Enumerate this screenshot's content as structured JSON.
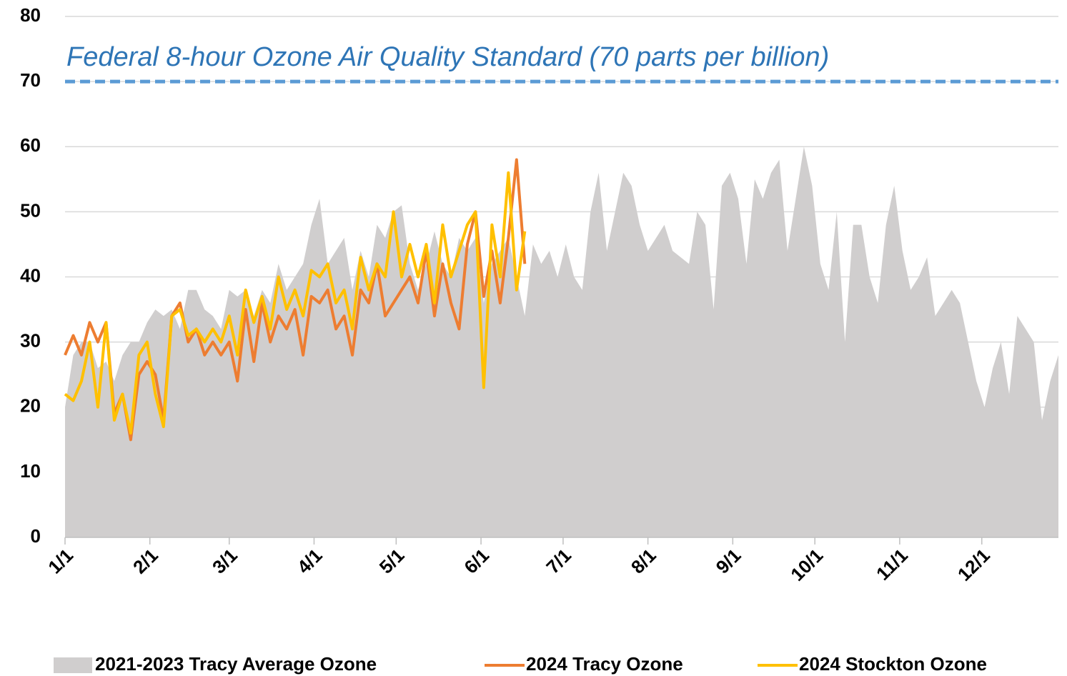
{
  "chart_data": {
    "type": "line",
    "annotation": "Federal 8-hour Ozone Air Quality Standard (70 parts per billion)",
    "reference_line": {
      "value": 70,
      "color": "#5b9bd5"
    },
    "xlim": [
      0,
      363
    ],
    "xticks": [
      {
        "value": 0,
        "label": "1/1"
      },
      {
        "value": 31,
        "label": "2/1"
      },
      {
        "value": 60,
        "label": "3/1"
      },
      {
        "value": 91,
        "label": "4/1"
      },
      {
        "value": 121,
        "label": "5/1"
      },
      {
        "value": 152,
        "label": "6/1"
      },
      {
        "value": 182,
        "label": "7/1"
      },
      {
        "value": 213,
        "label": "8/1"
      },
      {
        "value": 244,
        "label": "9/1"
      },
      {
        "value": 274,
        "label": "10/1"
      },
      {
        "value": 305,
        "label": "11/1"
      },
      {
        "value": 335,
        "label": "12/1"
      }
    ],
    "ylim": [
      0,
      80
    ],
    "yticks": [
      0,
      10,
      20,
      30,
      40,
      50,
      60,
      70,
      80
    ],
    "grid": true,
    "legend": "bottom",
    "series": [
      {
        "name": "2021-2023 Tracy Average Ozone",
        "style": "area",
        "color": "#d0cece",
        "x": [
          0,
          3,
          6,
          9,
          12,
          15,
          18,
          21,
          24,
          27,
          30,
          33,
          36,
          39,
          42,
          45,
          48,
          51,
          54,
          57,
          60,
          63,
          66,
          69,
          72,
          75,
          78,
          81,
          84,
          87,
          90,
          93,
          96,
          99,
          102,
          105,
          108,
          111,
          114,
          117,
          120,
          123,
          126,
          129,
          132,
          135,
          138,
          141,
          144,
          147,
          150,
          153,
          156,
          159,
          162,
          165,
          168,
          171,
          174,
          177,
          180,
          183,
          186,
          189,
          192,
          195,
          198,
          201,
          204,
          207,
          210,
          213,
          216,
          219,
          222,
          225,
          228,
          231,
          234,
          237,
          240,
          243,
          246,
          249,
          252,
          255,
          258,
          261,
          264,
          267,
          270,
          273,
          276,
          279,
          282,
          285,
          288,
          291,
          294,
          297,
          300,
          303,
          306,
          309,
          312,
          315,
          318,
          321,
          324,
          327,
          330,
          333,
          336,
          339,
          342,
          345,
          348,
          351,
          354,
          357,
          360,
          363
        ],
        "values": [
          20,
          28,
          30,
          30,
          26,
          27,
          24,
          28,
          30,
          30,
          33,
          35,
          34,
          35,
          32,
          38,
          38,
          35,
          34,
          32,
          38,
          37,
          38,
          34,
          38,
          36,
          42,
          38,
          40,
          42,
          48,
          52,
          42,
          44,
          46,
          38,
          44,
          40,
          48,
          46,
          50,
          51,
          42,
          38,
          42,
          47,
          42,
          40,
          46,
          44,
          46,
          36,
          42,
          44,
          46,
          40,
          34,
          45,
          42,
          44,
          40,
          45,
          40,
          38,
          50,
          56,
          44,
          50,
          56,
          54,
          48,
          44,
          46,
          48,
          44,
          43,
          42,
          50,
          48,
          35,
          54,
          56,
          52,
          42,
          55,
          52,
          56,
          58,
          44,
          52,
          60,
          54,
          42,
          38,
          50,
          30,
          48,
          48,
          40,
          36,
          48,
          54,
          44,
          38,
          40,
          43,
          34,
          36,
          38,
          36,
          30,
          24,
          20,
          26,
          30,
          22,
          34,
          32,
          30,
          18,
          24,
          28
        ]
      },
      {
        "name": "2024 Tracy Ozone",
        "style": "line",
        "color": "#ed7d31",
        "x": [
          0,
          3,
          6,
          9,
          12,
          15,
          18,
          21,
          24,
          27,
          30,
          33,
          36,
          39,
          42,
          45,
          48,
          51,
          54,
          57,
          60,
          63,
          66,
          69,
          72,
          75,
          78,
          81,
          84,
          87,
          90,
          93,
          96,
          99,
          102,
          105,
          108,
          111,
          114,
          117,
          120,
          123,
          126,
          129,
          132,
          135,
          138,
          141,
          144,
          147,
          150,
          153,
          156,
          159,
          162,
          165,
          168
        ],
        "values": [
          28,
          31,
          28,
          33,
          30,
          33,
          19,
          22,
          15,
          25,
          27,
          25,
          18,
          34,
          36,
          30,
          32,
          28,
          30,
          28,
          30,
          24,
          35,
          27,
          36,
          30,
          34,
          32,
          35,
          28,
          37,
          36,
          38,
          32,
          34,
          28,
          38,
          36,
          42,
          34,
          36,
          38,
          40,
          36,
          44,
          34,
          42,
          36,
          32,
          45,
          50,
          37,
          44,
          36,
          46,
          58,
          42
        ]
      },
      {
        "name": "2024 Stockton Ozone",
        "style": "line",
        "color": "#ffc000",
        "x": [
          0,
          3,
          6,
          9,
          12,
          15,
          18,
          21,
          24,
          27,
          30,
          33,
          36,
          39,
          42,
          45,
          48,
          51,
          54,
          57,
          60,
          63,
          66,
          69,
          72,
          75,
          78,
          81,
          84,
          87,
          90,
          93,
          96,
          99,
          102,
          105,
          108,
          111,
          114,
          117,
          120,
          123,
          126,
          129,
          132,
          135,
          138,
          141,
          144,
          147,
          150,
          153,
          156,
          159,
          162,
          165,
          168
        ],
        "values": [
          22,
          21,
          24,
          30,
          20,
          33,
          18,
          22,
          16,
          28,
          30,
          22,
          17,
          34,
          35,
          31,
          32,
          30,
          32,
          30,
          34,
          28,
          38,
          33,
          37,
          32,
          40,
          35,
          38,
          34,
          41,
          40,
          42,
          36,
          38,
          32,
          43,
          38,
          42,
          40,
          50,
          40,
          45,
          40,
          45,
          36,
          48,
          40,
          44,
          48,
          50,
          23,
          48,
          40,
          56,
          38,
          47
        ]
      }
    ]
  }
}
